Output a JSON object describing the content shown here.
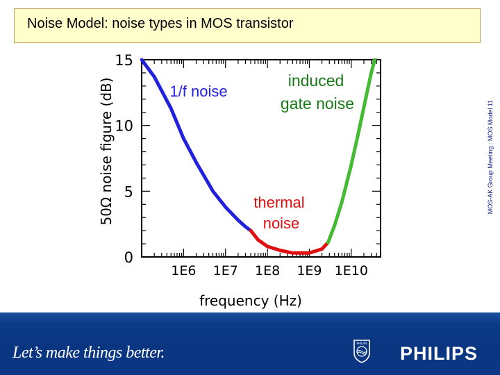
{
  "slide": {
    "title": "Noise Model: noise types in MOS transistor",
    "side_note": "MOS-AK Group Meeting : MOS Model 11",
    "slogan": "Let’s make things better.",
    "brand": "PHILIPS",
    "shield_text": "PHILIPS",
    "colors": {
      "title_bg": "#ffffcc",
      "footer_bg": "#0a3580",
      "blue": "#2222dd",
      "red": "#e01010",
      "green": "#44bb33"
    }
  },
  "chart_data": {
    "type": "line",
    "xlabel": "frequency (Hz)",
    "ylabel": "50Ω noise figure (dB)",
    "xscale": "log",
    "xlim": [
      100000,
      50000000000
    ],
    "ylim": [
      0,
      15
    ],
    "x_tick_labels": [
      "1E6",
      "1E7",
      "1E8",
      "1E9",
      "1E10"
    ],
    "x_tick_values": [
      1000000,
      10000000,
      100000000,
      1000000000,
      10000000000
    ],
    "y_tick_labels": [
      "0",
      "5",
      "10",
      "15"
    ],
    "y_tick_values": [
      0,
      5,
      10,
      15
    ],
    "series": [
      {
        "name": "1/f noise",
        "color": "#2222dd",
        "x": [
          100000,
          200000,
          500000,
          1000000,
          2000000,
          5000000,
          10000000,
          20000000,
          30000000,
          40000000
        ],
        "y": [
          15.0,
          13.7,
          11.3,
          9.0,
          7.2,
          5.0,
          3.8,
          2.8,
          2.3,
          2.0
        ]
      },
      {
        "name": "thermal noise",
        "color": "#e01010",
        "x": [
          40000000,
          60000000,
          100000000,
          200000000,
          400000000,
          1000000000,
          2000000000,
          2800000000
        ],
        "y": [
          2.0,
          1.3,
          0.8,
          0.5,
          0.3,
          0.3,
          0.6,
          1.1
        ]
      },
      {
        "name": "induced gate noise",
        "color": "#44bb33",
        "x": [
          2800000000,
          4000000000,
          6000000000,
          10000000000,
          15000000000,
          20000000000,
          30000000000,
          40000000000
        ],
        "y": [
          1.1,
          2.4,
          4.2,
          7.0,
          9.5,
          11.4,
          14.0,
          15.5
        ]
      }
    ],
    "annotations": [
      {
        "text": "1/f noise",
        "color": "#2222dd"
      },
      {
        "text": "induced",
        "color": "#1a7a1a"
      },
      {
        "text": "gate noise",
        "color": "#1a7a1a"
      },
      {
        "text": "thermal",
        "color": "#e01010"
      },
      {
        "text": "noise",
        "color": "#e01010"
      }
    ],
    "grid": false
  }
}
